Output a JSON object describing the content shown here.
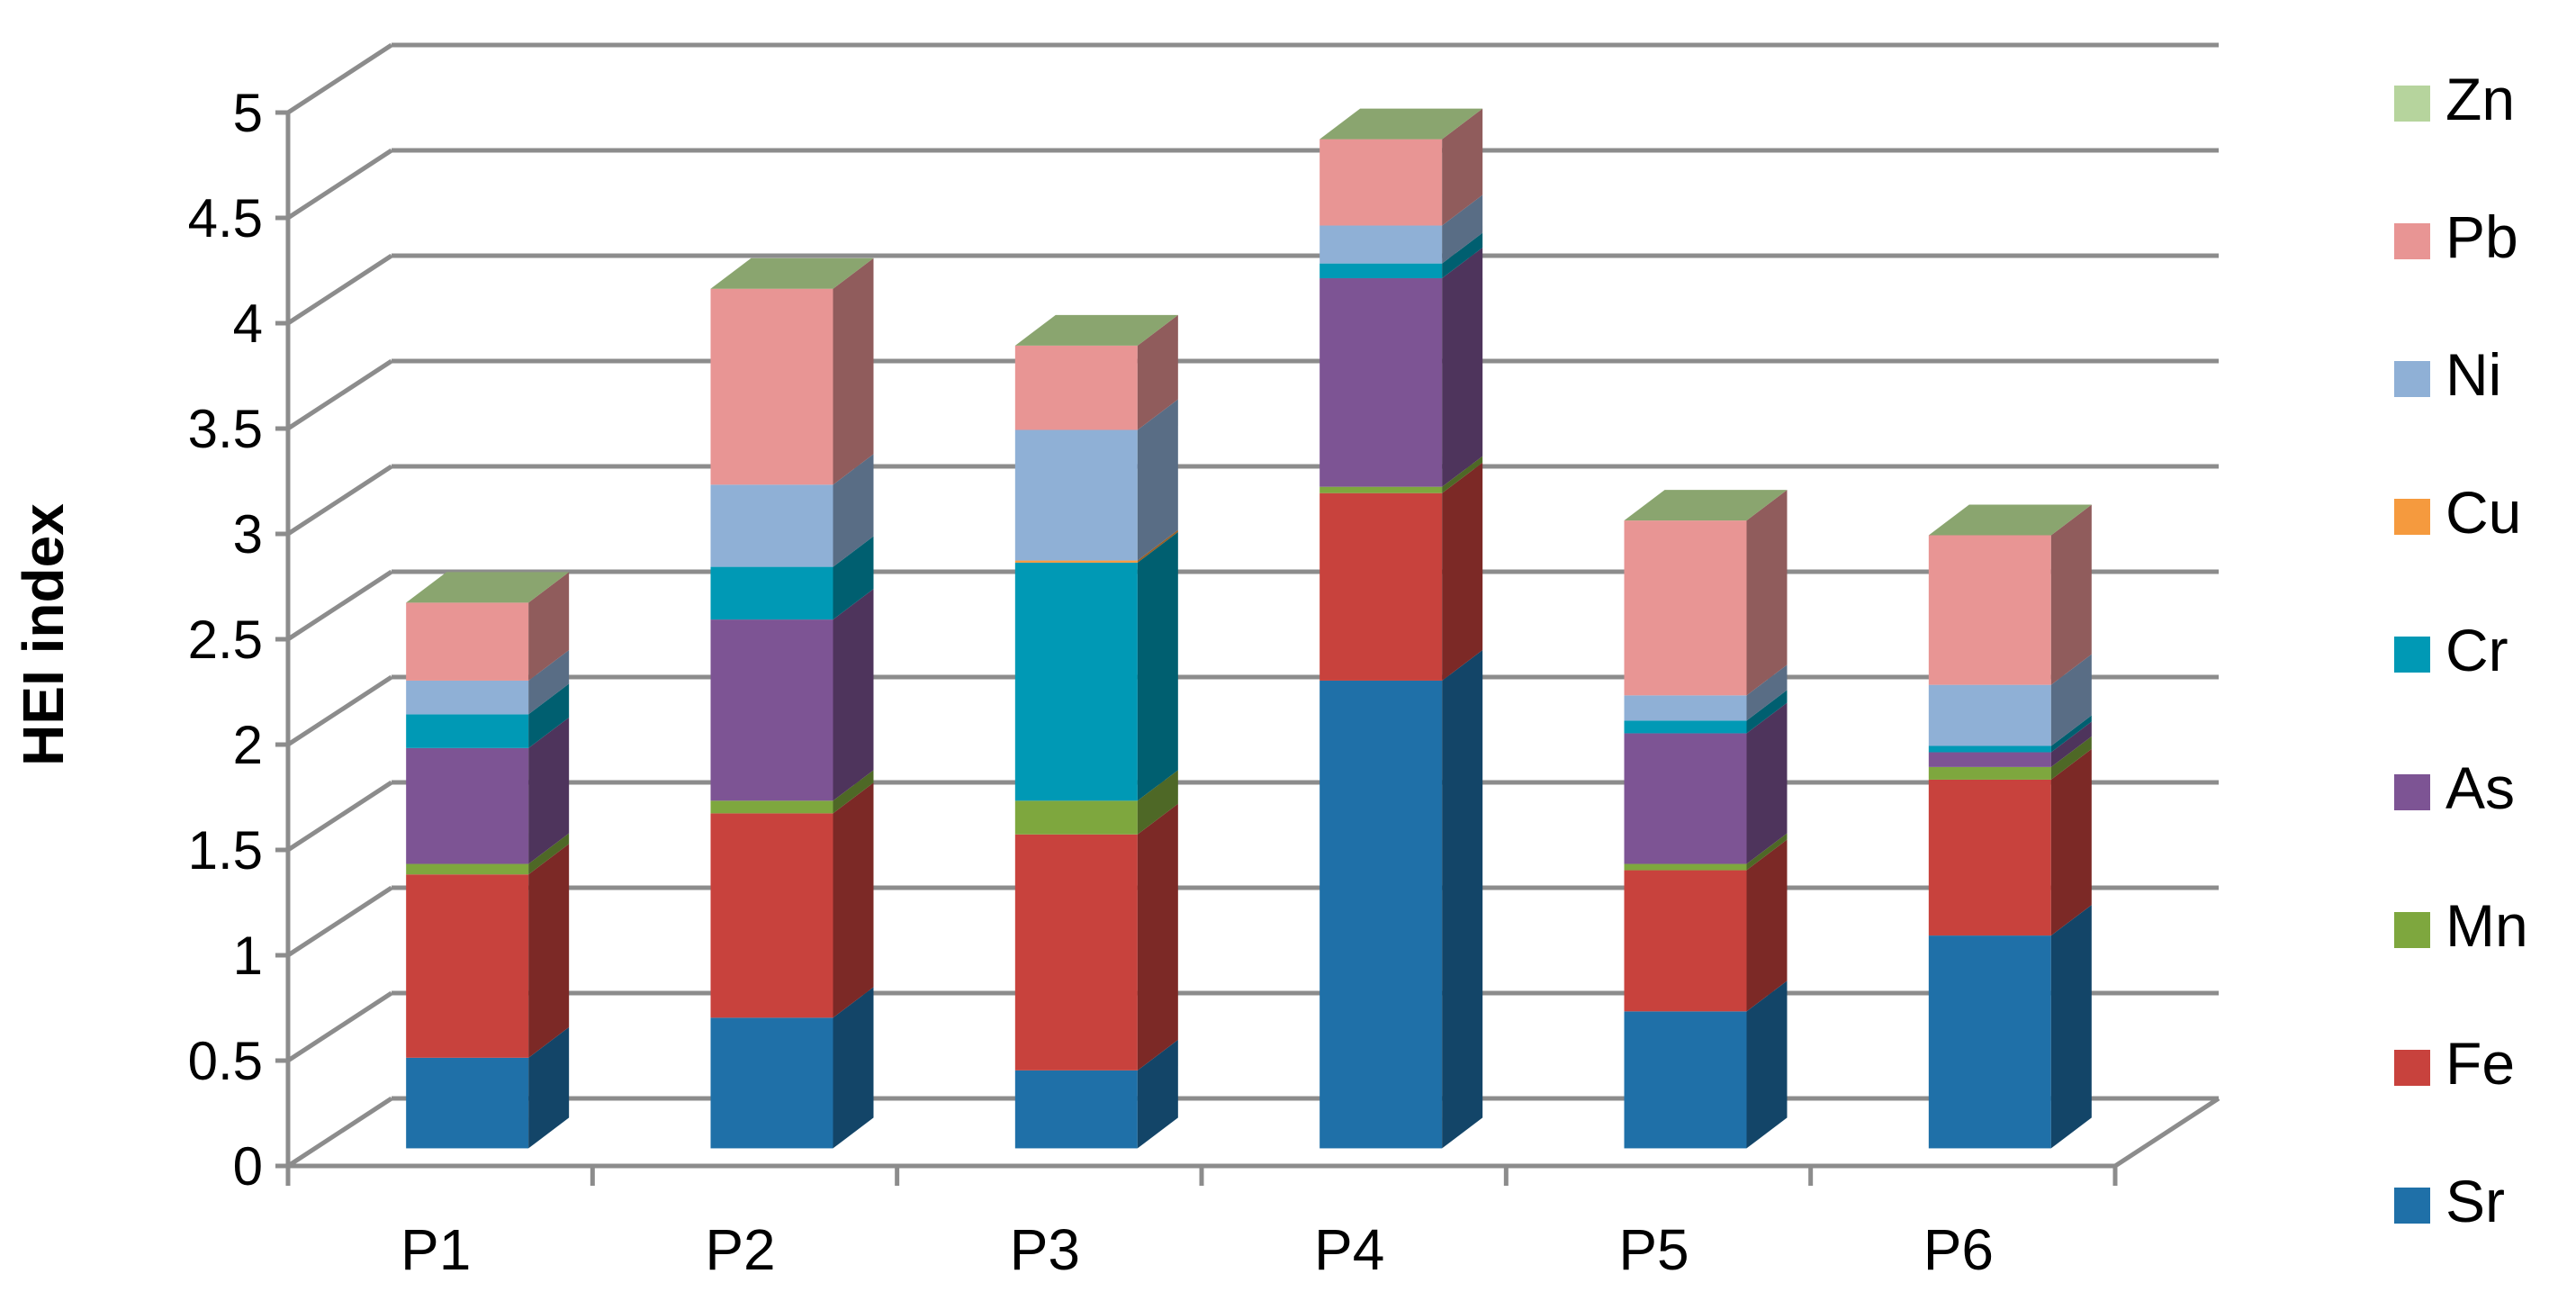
{
  "chart_data": {
    "type": "bar",
    "stacked": true,
    "style": "3d",
    "title": "",
    "xlabel": "",
    "ylabel": "HEI index",
    "ylim": [
      0,
      5
    ],
    "yticks": [
      "0",
      "0.5",
      "1",
      "1.5",
      "2",
      "2.5",
      "3",
      "3.5",
      "4",
      "4.5",
      "5"
    ],
    "grid": true,
    "legend": "right",
    "categories": [
      "P1",
      "P2",
      "P3",
      "P4",
      "P5",
      "P6"
    ],
    "series": [
      {
        "name": "Sr",
        "color": "#1f70a8",
        "values": [
          0.43,
          0.62,
          0.37,
          2.22,
          0.65,
          1.01
        ]
      },
      {
        "name": "Fe",
        "color": "#c8423d",
        "values": [
          0.87,
          0.97,
          1.12,
          0.89,
          0.67,
          0.74
        ]
      },
      {
        "name": "Mn",
        "color": "#7ea73e",
        "values": [
          0.05,
          0.06,
          0.16,
          0.03,
          0.03,
          0.06
        ]
      },
      {
        "name": "As",
        "color": "#7d5494",
        "values": [
          0.55,
          0.86,
          0.0,
          0.99,
          0.62,
          0.07
        ]
      },
      {
        "name": "Cr",
        "color": "#0099b5",
        "values": [
          0.16,
          0.25,
          1.13,
          0.07,
          0.06,
          0.03
        ]
      },
      {
        "name": "Cu",
        "color": "#f59a3e",
        "values": [
          0.0,
          0.0,
          0.01,
          0.0,
          0.0,
          0.0
        ]
      },
      {
        "name": "Ni",
        "color": "#8fb0d6",
        "values": [
          0.16,
          0.39,
          0.62,
          0.18,
          0.12,
          0.29
        ]
      },
      {
        "name": "Pb",
        "color": "#e89594",
        "values": [
          0.37,
          0.93,
          0.4,
          0.41,
          0.83,
          0.71
        ]
      },
      {
        "name": "Zn",
        "color": "#b6d49d",
        "values": [
          0.0,
          0.0,
          0.0,
          0.0,
          0.0,
          0.0
        ]
      }
    ],
    "legend_order": [
      "Zn",
      "Pb",
      "Ni",
      "Cu",
      "Cr",
      "As",
      "Mn",
      "Fe",
      "Sr"
    ]
  }
}
